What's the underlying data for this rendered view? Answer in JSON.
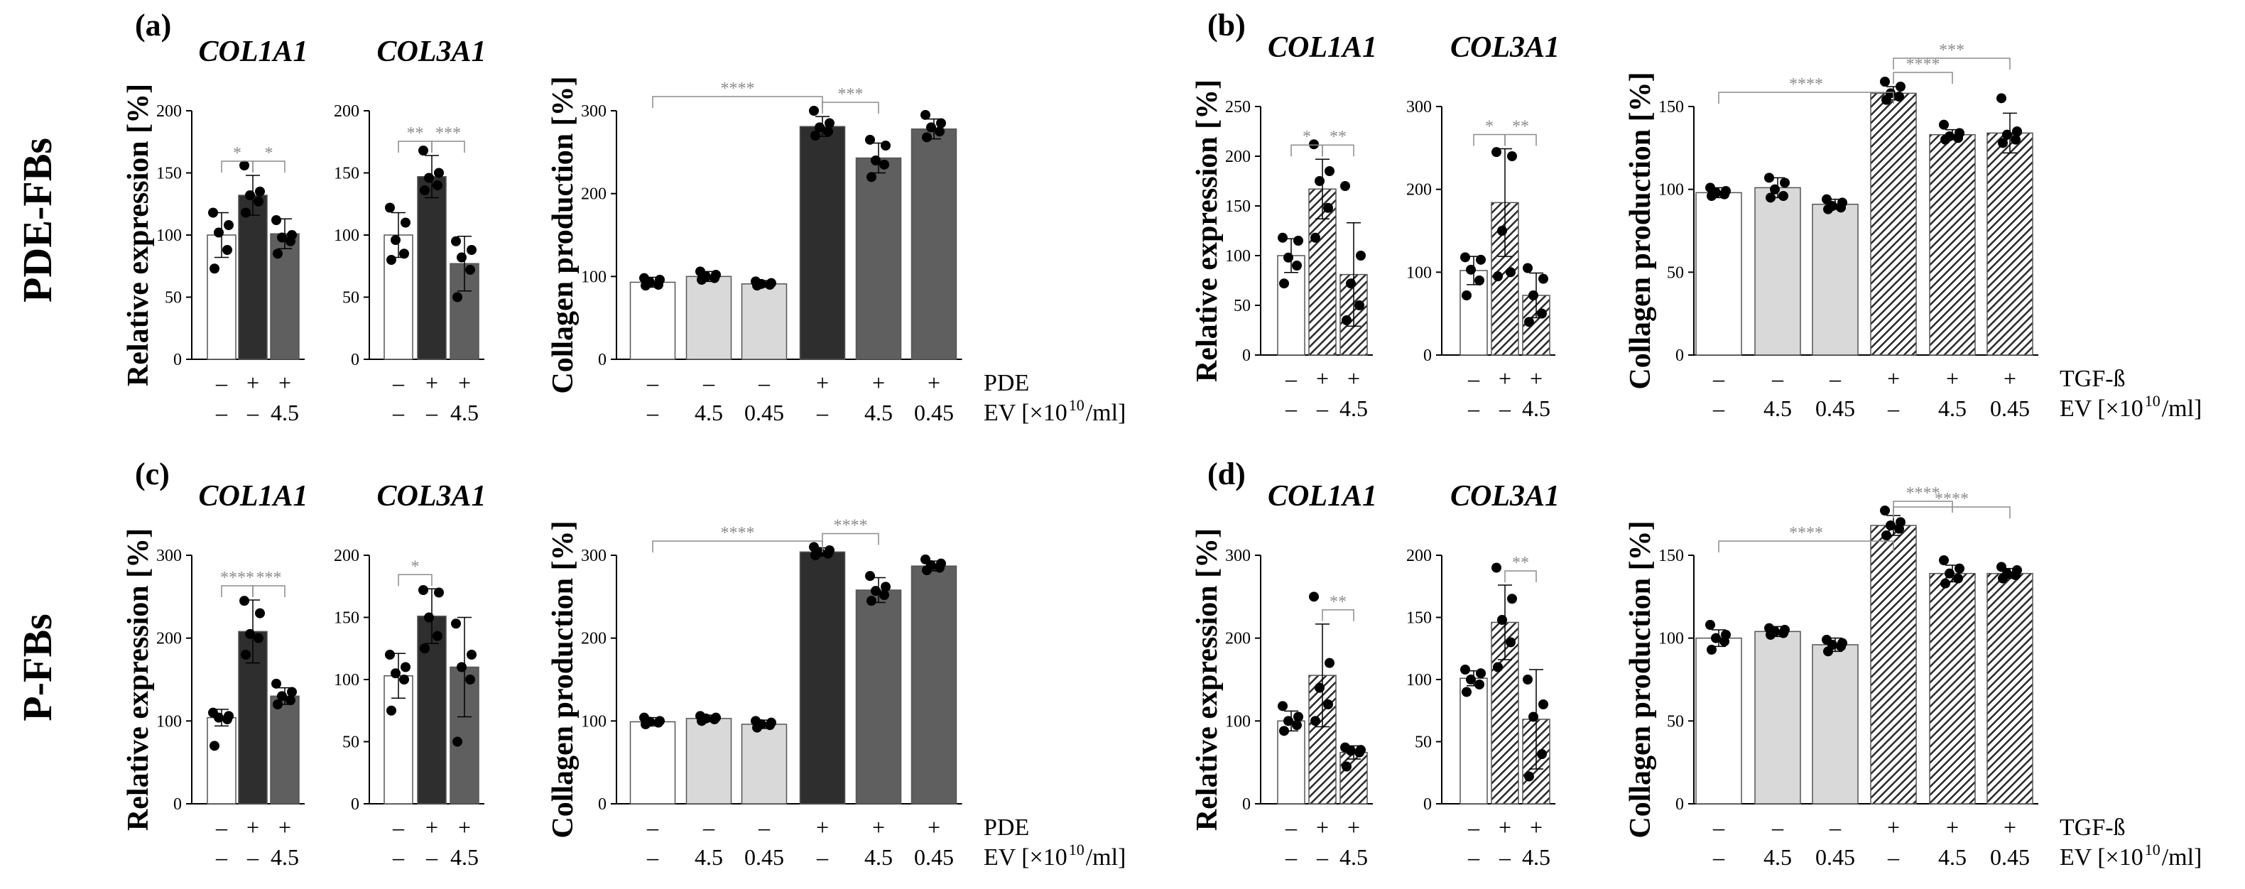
{
  "row_labels": [
    "PDE-FBs",
    "P-FBs"
  ],
  "panel_letters": [
    "(a)",
    "(b)",
    "(c)",
    "(d)"
  ],
  "colors": {
    "white": "#ffffff",
    "light": "#d9d9d9",
    "dark": "#2e2e2e",
    "mid": "#5f5f5f",
    "sig": "#8c8c8c",
    "axis": "#000000"
  },
  "rows_text": {
    "pde": "PDE",
    "tgf": "TGF-ß",
    "ev": "EV [×10",
    "ev_exp": "10",
    "ev_unit": "/ml]",
    "minus": "–",
    "plus": "+",
    "ev_small": [
      "–",
      "–",
      "4.5"
    ],
    "ev_big": [
      "–",
      "4.5",
      "0.45",
      "–",
      "4.5",
      "0.45"
    ]
  },
  "chart_data": [
    {
      "id": "a1",
      "panel": "a",
      "type": "bar",
      "title": "COL1A1",
      "ylabel": "Relative expression [%]",
      "ylim": [
        0,
        200
      ],
      "yticks": [
        0,
        50,
        100,
        150,
        200
      ],
      "categories": [
        "–/–",
        "+/–",
        "+/4.5"
      ],
      "values": [
        100,
        132,
        101
      ],
      "errors": [
        18,
        16,
        12
      ],
      "styles": [
        "white",
        "dark",
        "mid"
      ],
      "points": [
        [
          118,
          108,
          102,
          88,
          73
        ],
        [
          156,
          135,
          132,
          127,
          118
        ],
        [
          112,
          100,
          98,
          95,
          85
        ]
      ],
      "treatment": [
        "–",
        "+",
        "+"
      ],
      "ev": [
        "–",
        "–",
        "4.5"
      ],
      "sig": [
        {
          "from": 0,
          "to": 1,
          "label": "*"
        },
        {
          "from": 1,
          "to": 2,
          "label": "*"
        }
      ]
    },
    {
      "id": "a2",
      "panel": "a",
      "type": "bar",
      "title": "COL3A1",
      "ylabel": "",
      "ylim": [
        0,
        200
      ],
      "yticks": [
        0,
        50,
        100,
        150,
        200
      ],
      "categories": [
        "–/–",
        "+/–",
        "+/4.5"
      ],
      "values": [
        100,
        147,
        77
      ],
      "errors": [
        18,
        17,
        22
      ],
      "styles": [
        "white",
        "dark",
        "mid"
      ],
      "points": [
        [
          122,
          110,
          96,
          85,
          80
        ],
        [
          168,
          150,
          146,
          140,
          136
        ],
        [
          95,
          88,
          82,
          72,
          50
        ]
      ],
      "treatment": [
        "–",
        "+",
        "+"
      ],
      "ev": [
        "–",
        "–",
        "4.5"
      ],
      "sig": [
        {
          "from": 0,
          "to": 1,
          "label": "**"
        },
        {
          "from": 1,
          "to": 2,
          "label": "***"
        }
      ]
    },
    {
      "id": "a3",
      "panel": "a",
      "type": "bar",
      "title": "",
      "ylabel": "Collagen production [%]",
      "ylim": [
        0,
        300
      ],
      "yticks": [
        0,
        100,
        200,
        300
      ],
      "categories": [
        "–/–",
        "–/4.5",
        "–/0.45",
        "+/–",
        "+/4.5",
        "+/0.45"
      ],
      "values": [
        93,
        100,
        91,
        281,
        243,
        278
      ],
      "errors": [
        6,
        6,
        4,
        12,
        18,
        12
      ],
      "styles": [
        "white",
        "light",
        "light",
        "dark",
        "mid",
        "mid"
      ],
      "points": [
        [
          98,
          96,
          93,
          90,
          89
        ],
        [
          106,
          102,
          100,
          98,
          96
        ],
        [
          94,
          92,
          91,
          90,
          89
        ],
        [
          300,
          285,
          280,
          275,
          270
        ],
        [
          265,
          258,
          240,
          235,
          220
        ],
        [
          295,
          285,
          280,
          275,
          268
        ]
      ],
      "treatment": [
        "–",
        "–",
        "–",
        "+",
        "+",
        "+"
      ],
      "ev": [
        "–",
        "4.5",
        "0.45",
        "–",
        "4.5",
        "0.45"
      ],
      "sig": [
        {
          "from": 0,
          "to": 3,
          "label": "****"
        },
        {
          "from": 3,
          "to": 4,
          "label": "***"
        }
      ]
    },
    {
      "id": "b1",
      "panel": "b",
      "type": "bar",
      "title": "COL1A1",
      "ylabel": "Relative expression [%]",
      "ylim": [
        0,
        250
      ],
      "yticks": [
        0,
        50,
        100,
        150,
        200,
        250
      ],
      "categories": [
        "–/–",
        "+/–",
        "+/4.5"
      ],
      "values": [
        100,
        167,
        81
      ],
      "errors": [
        17,
        30,
        52
      ],
      "styles": [
        "white",
        "hatch",
        "hatch"
      ],
      "points": [
        [
          118,
          115,
          98,
          90,
          72
        ],
        [
          212,
          185,
          175,
          148,
          118
        ],
        [
          170,
          100,
          72,
          50,
          35
        ]
      ],
      "treatment": [
        "–",
        "+",
        "+"
      ],
      "ev": [
        "–",
        "–",
        "4.5"
      ],
      "sig": [
        {
          "from": 0,
          "to": 1,
          "label": "*"
        },
        {
          "from": 1,
          "to": 2,
          "label": "**"
        }
      ]
    },
    {
      "id": "b2",
      "panel": "b",
      "type": "bar",
      "title": "COL3A1",
      "ylabel": "",
      "ylim": [
        0,
        300
      ],
      "yticks": [
        0,
        100,
        200,
        300
      ],
      "categories": [
        "–/–",
        "+/–",
        "+/4.5"
      ],
      "values": [
        102,
        184,
        72
      ],
      "errors": [
        17,
        65,
        27
      ],
      "styles": [
        "white",
        "hatch",
        "hatch"
      ],
      "points": [
        [
          118,
          115,
          103,
          90,
          72
        ],
        [
          245,
          240,
          150,
          100,
          95
        ],
        [
          105,
          92,
          72,
          50,
          40
        ]
      ],
      "treatment": [
        "–",
        "+",
        "+"
      ],
      "ev": [
        "–",
        "–",
        "4.5"
      ],
      "sig": [
        {
          "from": 0,
          "to": 1,
          "label": "*"
        },
        {
          "from": 1,
          "to": 2,
          "label": "**"
        }
      ]
    },
    {
      "id": "b3",
      "panel": "b",
      "type": "bar",
      "title": "",
      "ylabel": "Collagen production [%]",
      "ylim": [
        0,
        150
      ],
      "yticks": [
        0,
        50,
        100,
        150
      ],
      "categories": [
        "–/–",
        "–/4.5",
        "–/0.45",
        "+/–",
        "+/4.5",
        "+/0.45"
      ],
      "values": [
        98,
        101,
        91,
        158,
        133,
        134
      ],
      "errors": [
        3,
        6,
        3,
        4,
        3,
        12
      ],
      "styles": [
        "white",
        "light",
        "light",
        "hatch",
        "hatch",
        "hatch"
      ],
      "points": [
        [
          101,
          99,
          98,
          97,
          96
        ],
        [
          107,
          104,
          100,
          96,
          95
        ],
        [
          94,
          92,
          90,
          89,
          88
        ],
        [
          165,
          162,
          158,
          156,
          154
        ],
        [
          139,
          134,
          132,
          131,
          130
        ],
        [
          155,
          135,
          133,
          130,
          128
        ]
      ],
      "treatment": [
        "–",
        "–",
        "–",
        "+",
        "+",
        "+"
      ],
      "ev": [
        "–",
        "4.5",
        "0.45",
        "–",
        "4.5",
        "0.45"
      ],
      "sig": [
        {
          "from": 0,
          "to": 3,
          "label": "****"
        },
        {
          "from": 3,
          "to": 4,
          "label": "****"
        },
        {
          "from": 3,
          "to": 5,
          "label": "***"
        }
      ]
    },
    {
      "id": "c1",
      "panel": "c",
      "type": "bar",
      "title": "COL1A1",
      "ylabel": "Relative expression [%]",
      "ylim": [
        0,
        300
      ],
      "yticks": [
        0,
        100,
        200,
        300
      ],
      "categories": [
        "–/–",
        "+/–",
        "+/4.5"
      ],
      "values": [
        104,
        208,
        130
      ],
      "errors": [
        10,
        38,
        10
      ],
      "styles": [
        "white",
        "dark",
        "mid"
      ],
      "points": [
        [
          110,
          106,
          104,
          102,
          70
        ],
        [
          245,
          230,
          205,
          200,
          180
        ],
        [
          145,
          135,
          130,
          125,
          120
        ]
      ],
      "treatment": [
        "–",
        "+",
        "+"
      ],
      "ev": [
        "–",
        "–",
        "4.5"
      ],
      "sig": [
        {
          "from": 0,
          "to": 1,
          "label": "****"
        },
        {
          "from": 1,
          "to": 2,
          "label": "***"
        }
      ]
    },
    {
      "id": "c2",
      "panel": "c",
      "type": "bar",
      "title": "COL3A1",
      "ylabel": "",
      "ylim": [
        0,
        200
      ],
      "yticks": [
        0,
        50,
        100,
        150,
        200
      ],
      "categories": [
        "–/–",
        "+/–",
        "+/4.5"
      ],
      "values": [
        103,
        151,
        110
      ],
      "errors": [
        18,
        22,
        40
      ],
      "styles": [
        "white",
        "dark",
        "mid"
      ],
      "points": [
        [
          120,
          110,
          105,
          100,
          75
        ],
        [
          172,
          170,
          150,
          135,
          125
        ],
        [
          145,
          120,
          110,
          100,
          50
        ]
      ],
      "treatment": [
        "–",
        "+",
        "+"
      ],
      "ev": [
        "–",
        "–",
        "4.5"
      ],
      "sig": [
        {
          "from": 0,
          "to": 1,
          "label": "*"
        }
      ]
    },
    {
      "id": "c3",
      "panel": "c",
      "type": "bar",
      "title": "",
      "ylabel": "Collagen production [%]",
      "ylim": [
        0,
        300
      ],
      "yticks": [
        0,
        100,
        200,
        300
      ],
      "categories": [
        "–/–",
        "–/4.5",
        "–/0.45",
        "+/–",
        "+/4.5",
        "+/0.45"
      ],
      "values": [
        99,
        103,
        96,
        304,
        258,
        287
      ],
      "errors": [
        5,
        4,
        5,
        5,
        15,
        6
      ],
      "styles": [
        "white",
        "light",
        "light",
        "dark",
        "mid",
        "mid"
      ],
      "points": [
        [
          104,
          100,
          99,
          98,
          96
        ],
        [
          106,
          104,
          103,
          102,
          100
        ],
        [
          100,
          98,
          96,
          95,
          92
        ],
        [
          310,
          306,
          304,
          302,
          300
        ],
        [
          275,
          262,
          257,
          252,
          245
        ],
        [
          295,
          290,
          288,
          285,
          282
        ]
      ],
      "treatment": [
        "–",
        "–",
        "–",
        "+",
        "+",
        "+"
      ],
      "ev": [
        "–",
        "4.5",
        "0.45",
        "–",
        "4.5",
        "0.45"
      ],
      "sig": [
        {
          "from": 0,
          "to": 3,
          "label": "****"
        },
        {
          "from": 3,
          "to": 4,
          "label": "****"
        }
      ]
    },
    {
      "id": "d1",
      "panel": "d",
      "type": "bar",
      "title": "COL1A1",
      "ylabel": "Relative expression [%]",
      "ylim": [
        0,
        300
      ],
      "yticks": [
        0,
        100,
        200,
        300
      ],
      "categories": [
        "–/–",
        "+/–",
        "+/4.5"
      ],
      "values": [
        100,
        155,
        62
      ],
      "errors": [
        12,
        62,
        8
      ],
      "styles": [
        "white",
        "hatch",
        "hatch"
      ],
      "points": [
        [
          118,
          105,
          100,
          95,
          88
        ],
        [
          250,
          170,
          140,
          120,
          100
        ],
        [
          68,
          65,
          64,
          62,
          45
        ]
      ],
      "treatment": [
        "–",
        "+",
        "+"
      ],
      "ev": [
        "–",
        "–",
        "4.5"
      ],
      "sig": [
        {
          "from": 1,
          "to": 2,
          "label": "**"
        }
      ]
    },
    {
      "id": "d2",
      "panel": "d",
      "type": "bar",
      "title": "COL3A1",
      "ylabel": "",
      "ylim": [
        0,
        200
      ],
      "yticks": [
        0,
        50,
        100,
        150,
        200
      ],
      "categories": [
        "–/–",
        "+/–",
        "+/4.5"
      ],
      "values": [
        101,
        146,
        68
      ],
      "errors": [
        6,
        30,
        40
      ],
      "styles": [
        "white",
        "hatch",
        "hatch"
      ],
      "points": [
        [
          108,
          105,
          100,
          96,
          90
        ],
        [
          190,
          165,
          148,
          130,
          110
        ],
        [
          100,
          80,
          70,
          40,
          22
        ]
      ],
      "treatment": [
        "–",
        "+",
        "+"
      ],
      "ev": [
        "–",
        "–",
        "4.5"
      ],
      "sig": [
        {
          "from": 1,
          "to": 2,
          "label": "**"
        }
      ]
    },
    {
      "id": "d3",
      "panel": "d",
      "type": "bar",
      "title": "",
      "ylabel": "Collagen production [%]",
      "ylim": [
        0,
        150
      ],
      "yticks": [
        0,
        50,
        100,
        150
      ],
      "categories": [
        "–/–",
        "–/4.5",
        "–/0.45",
        "+/–",
        "+/4.5",
        "+/0.45"
      ],
      "values": [
        100,
        104,
        96,
        168,
        139,
        139
      ],
      "errors": [
        5,
        3,
        4,
        6,
        5,
        3
      ],
      "styles": [
        "white",
        "light",
        "light",
        "hatch",
        "hatch",
        "hatch"
      ],
      "points": [
        [
          108,
          102,
          100,
          98,
          93
        ],
        [
          106,
          105,
          104,
          103,
          102
        ],
        [
          99,
          97,
          96,
          95,
          92
        ],
        [
          177,
          170,
          168,
          166,
          162
        ],
        [
          147,
          142,
          139,
          136,
          133
        ],
        [
          143,
          141,
          139,
          138,
          136
        ]
      ],
      "treatment": [
        "–",
        "–",
        "–",
        "+",
        "+",
        "+"
      ],
      "ev": [
        "–",
        "4.5",
        "0.45",
        "–",
        "4.5",
        "0.45"
      ],
      "sig": [
        {
          "from": 0,
          "to": 3,
          "label": "****"
        },
        {
          "from": 3,
          "to": 4,
          "label": "****"
        },
        {
          "from": 3,
          "to": 5,
          "label": "****"
        }
      ]
    }
  ]
}
